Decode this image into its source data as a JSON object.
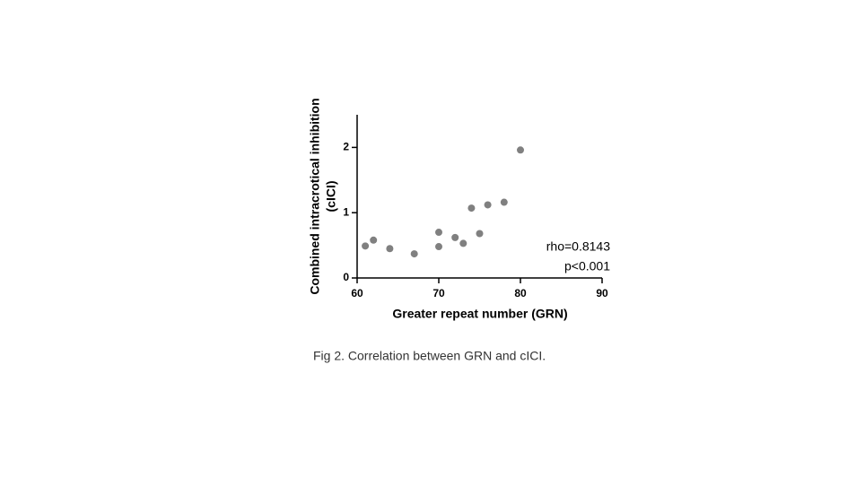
{
  "chart_data": {
    "type": "scatter",
    "xlabel": "Greater repeat number (GRN)",
    "ylabel": [
      "Combined intracrotical inhibition",
      "(cICI)"
    ],
    "caption": "Fig 2. Correlation between GRN and cICI.",
    "annotations": [
      "rho=0.8143",
      "p<0.001"
    ],
    "color": "#808080",
    "xlim": [
      60,
      90
    ],
    "xticks": [
      60,
      70,
      80,
      90
    ],
    "ylim": [
      0,
      2.5
    ],
    "yticks": [
      0,
      1,
      2
    ],
    "grid": false,
    "x": [
      61,
      62,
      64,
      67,
      70,
      70,
      72,
      73,
      74,
      75,
      76,
      78,
      80
    ],
    "values": [
      0.49,
      0.58,
      0.45,
      0.37,
      0.7,
      0.48,
      0.62,
      0.53,
      1.07,
      0.68,
      1.12,
      1.16,
      1.96
    ]
  }
}
